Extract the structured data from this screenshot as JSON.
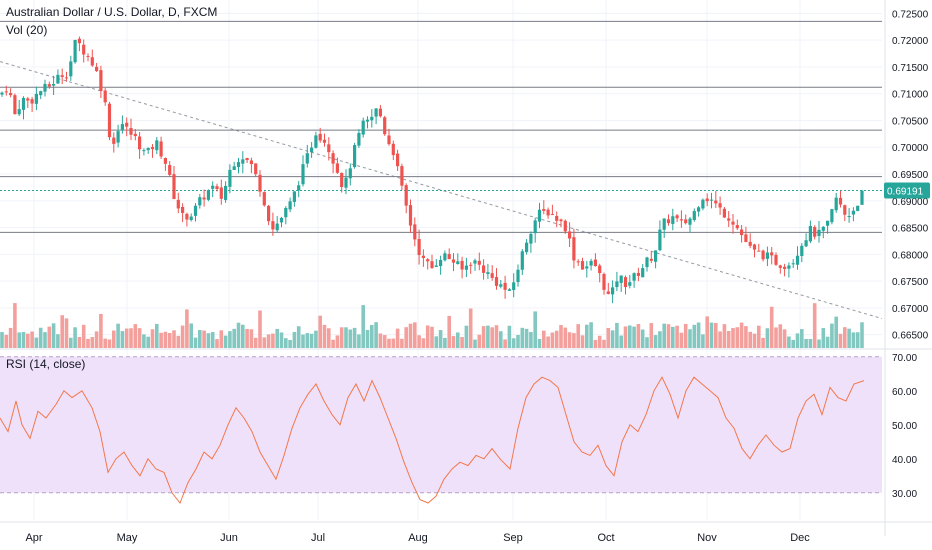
{
  "chart_data": [
    {
      "type": "candlestick",
      "title": "Australian Dollar / U.S. Dollar, D, FXCM",
      "volume_label": "Vol (20)",
      "ylim": [
        0.6625,
        0.7275
      ],
      "y_ticks": [
        "0.72500",
        "0.72000",
        "0.71500",
        "0.71000",
        "0.70500",
        "0.70000",
        "0.69500",
        "0.69000",
        "0.68500",
        "0.68000",
        "0.67500",
        "0.67000",
        "0.66500"
      ],
      "last_price": "0.69191",
      "x_ticks": [
        "Apr",
        "May",
        "Jun",
        "Jul",
        "Aug",
        "Sep",
        "Oct",
        "Nov",
        "Dec"
      ],
      "horizontal_levels": [
        0.7235,
        0.7112,
        0.7032,
        0.6945,
        0.6841
      ],
      "trendline": {
        "start": [
          "Mar",
          0.716
        ],
        "end": [
          "Dec",
          0.668
        ]
      },
      "colors": {
        "up": "#26a69a",
        "down": "#ef5350",
        "up_volume": "#83c8c0",
        "down_volume": "#f3a09c",
        "last_price_line": "#26a69a"
      },
      "close_path": [
        [
          0,
          0.7098
        ],
        [
          8,
          0.7115
        ],
        [
          15,
          0.706
        ],
        [
          22,
          0.709
        ],
        [
          30,
          0.7085
        ],
        [
          40,
          0.7105
        ],
        [
          50,
          0.7115
        ],
        [
          60,
          0.7135
        ],
        [
          68,
          0.714
        ],
        [
          76,
          0.72
        ],
        [
          86,
          0.7175
        ],
        [
          95,
          0.715
        ],
        [
          104,
          0.7095
        ],
        [
          112,
          0.6995
        ],
        [
          120,
          0.705
        ],
        [
          128,
          0.703
        ],
        [
          136,
          0.7015
        ],
        [
          146,
          0.6985
        ],
        [
          156,
          0.701
        ],
        [
          165,
          0.6975
        ],
        [
          174,
          0.691
        ],
        [
          182,
          0.687
        ],
        [
          192,
          0.6875
        ],
        [
          202,
          0.6905
        ],
        [
          212,
          0.6925
        ],
        [
          222,
          0.6905
        ],
        [
          232,
          0.697
        ],
        [
          242,
          0.6985
        ],
        [
          252,
          0.6965
        ],
        [
          262,
          0.6915
        ],
        [
          272,
          0.6845
        ],
        [
          282,
          0.687
        ],
        [
          292,
          0.69
        ],
        [
          300,
          0.6945
        ],
        [
          308,
          0.6985
        ],
        [
          316,
          0.703
        ],
        [
          326,
          0.701
        ],
        [
          336,
          0.6965
        ],
        [
          344,
          0.692
        ],
        [
          352,
          0.698
        ],
        [
          362,
          0.704
        ],
        [
          370,
          0.705
        ],
        [
          378,
          0.7075
        ],
        [
          386,
          0.702
        ],
        [
          394,
          0.699
        ],
        [
          402,
          0.692
        ],
        [
          412,
          0.6845
        ],
        [
          422,
          0.679
        ],
        [
          432,
          0.6775
        ],
        [
          442,
          0.68
        ],
        [
          452,
          0.679
        ],
        [
          462,
          0.677
        ],
        [
          472,
          0.679
        ],
        [
          482,
          0.6775
        ],
        [
          492,
          0.6755
        ],
        [
          502,
          0.674
        ],
        [
          510,
          0.6725
        ],
        [
          518,
          0.6775
        ],
        [
          528,
          0.6835
        ],
        [
          538,
          0.6875
        ],
        [
          548,
          0.688
        ],
        [
          558,
          0.6865
        ],
        [
          566,
          0.685
        ],
        [
          574,
          0.6795
        ],
        [
          584,
          0.6775
        ],
        [
          594,
          0.6785
        ],
        [
          602,
          0.675
        ],
        [
          610,
          0.6715
        ],
        [
          618,
          0.676
        ],
        [
          626,
          0.6745
        ],
        [
          636,
          0.676
        ],
        [
          646,
          0.6785
        ],
        [
          654,
          0.68
        ],
        [
          662,
          0.6855
        ],
        [
          672,
          0.687
        ],
        [
          682,
          0.6855
        ],
        [
          692,
          0.687
        ],
        [
          702,
          0.691
        ],
        [
          712,
          0.69
        ],
        [
          722,
          0.688
        ],
        [
          732,
          0.6865
        ],
        [
          742,
          0.6835
        ],
        [
          752,
          0.6805
        ],
        [
          762,
          0.68
        ],
        [
          772,
          0.679
        ],
        [
          782,
          0.678
        ],
        [
          792,
          0.6785
        ],
        [
          800,
          0.6815
        ],
        [
          810,
          0.6845
        ],
        [
          818,
          0.6835
        ],
        [
          828,
          0.6855
        ],
        [
          836,
          0.6905
        ],
        [
          846,
          0.687
        ],
        [
          854,
          0.6885
        ],
        [
          864,
          0.6919
        ]
      ],
      "volume_ticks_percent_of_pane": [
        55,
        50,
        48,
        62,
        58,
        70,
        66,
        72,
        60,
        78
      ]
    },
    {
      "type": "line",
      "title": "RSI (14, close)",
      "ylim": [
        22,
        72
      ],
      "y_ticks": [
        "70.00",
        "60.00",
        "50.00",
        "40.00",
        "30.00"
      ],
      "band": [
        30,
        70
      ],
      "colors": {
        "line": "#f2774b",
        "band": "#f0e1fb"
      },
      "series": [
        [
          0,
          52
        ],
        [
          8,
          48
        ],
        [
          16,
          57
        ],
        [
          22,
          50
        ],
        [
          30,
          46
        ],
        [
          38,
          54
        ],
        [
          46,
          52
        ],
        [
          56,
          56
        ],
        [
          64,
          60
        ],
        [
          72,
          58
        ],
        [
          82,
          60
        ],
        [
          92,
          55
        ],
        [
          100,
          48
        ],
        [
          108,
          36
        ],
        [
          116,
          40
        ],
        [
          124,
          42
        ],
        [
          132,
          38
        ],
        [
          140,
          35
        ],
        [
          148,
          40
        ],
        [
          156,
          37
        ],
        [
          164,
          36
        ],
        [
          172,
          30
        ],
        [
          180,
          27
        ],
        [
          188,
          33
        ],
        [
          196,
          37
        ],
        [
          204,
          42
        ],
        [
          212,
          40
        ],
        [
          220,
          44
        ],
        [
          228,
          50
        ],
        [
          236,
          55
        ],
        [
          244,
          52
        ],
        [
          252,
          48
        ],
        [
          260,
          42
        ],
        [
          268,
          38
        ],
        [
          276,
          34
        ],
        [
          284,
          41
        ],
        [
          292,
          49
        ],
        [
          300,
          55
        ],
        [
          308,
          59
        ],
        [
          316,
          62
        ],
        [
          324,
          57
        ],
        [
          332,
          53
        ],
        [
          340,
          50
        ],
        [
          348,
          58
        ],
        [
          356,
          62
        ],
        [
          364,
          57
        ],
        [
          372,
          63
        ],
        [
          380,
          58
        ],
        [
          388,
          52
        ],
        [
          396,
          46
        ],
        [
          404,
          39
        ],
        [
          412,
          33
        ],
        [
          420,
          28
        ],
        [
          428,
          27
        ],
        [
          436,
          29
        ],
        [
          444,
          34
        ],
        [
          452,
          37
        ],
        [
          460,
          39
        ],
        [
          468,
          38
        ],
        [
          476,
          41
        ],
        [
          484,
          40
        ],
        [
          492,
          43
        ],
        [
          500,
          40
        ],
        [
          510,
          37
        ],
        [
          518,
          49
        ],
        [
          526,
          58
        ],
        [
          534,
          62
        ],
        [
          542,
          64
        ],
        [
          550,
          63
        ],
        [
          558,
          61
        ],
        [
          566,
          53
        ],
        [
          574,
          45
        ],
        [
          582,
          42
        ],
        [
          590,
          41
        ],
        [
          598,
          44
        ],
        [
          606,
          38
        ],
        [
          614,
          35
        ],
        [
          622,
          45
        ],
        [
          630,
          50
        ],
        [
          638,
          48
        ],
        [
          646,
          53
        ],
        [
          654,
          60
        ],
        [
          662,
          64
        ],
        [
          670,
          59
        ],
        [
          678,
          52
        ],
        [
          686,
          60
        ],
        [
          694,
          64
        ],
        [
          702,
          62
        ],
        [
          710,
          60
        ],
        [
          718,
          58
        ],
        [
          726,
          52
        ],
        [
          734,
          49
        ],
        [
          742,
          43
        ],
        [
          750,
          40
        ],
        [
          758,
          44
        ],
        [
          766,
          47
        ],
        [
          774,
          44
        ],
        [
          782,
          42
        ],
        [
          790,
          43
        ],
        [
          798,
          52
        ],
        [
          806,
          57
        ],
        [
          814,
          59
        ],
        [
          822,
          53
        ],
        [
          830,
          61
        ],
        [
          838,
          58
        ],
        [
          846,
          57
        ],
        [
          854,
          62
        ],
        [
          864,
          63
        ]
      ]
    }
  ]
}
